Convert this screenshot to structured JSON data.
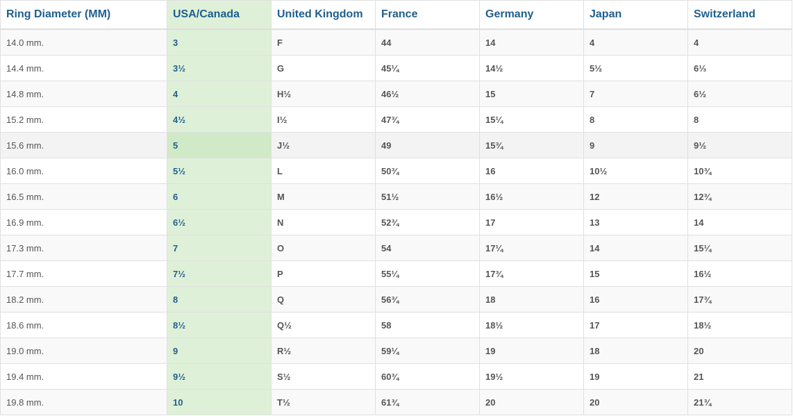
{
  "table": {
    "headers": [
      "Ring Diameter (MM)",
      "USA/Canada",
      "United Kingdom",
      "France",
      "Germany",
      "Japan",
      "Switzerland"
    ],
    "highlight_color": "#dff0d8",
    "header_color": "#1f5f8e",
    "hovered_row": 4,
    "rows": [
      [
        "14.0 mm.",
        "3",
        "F",
        "44",
        "14",
        "4",
        "4"
      ],
      [
        "14.4 mm.",
        "3½",
        "G",
        "45¼",
        "14½",
        "5½",
        "6⅓"
      ],
      [
        "14.8 mm.",
        "4",
        "H½",
        "46½",
        "15",
        "7",
        "6½"
      ],
      [
        "15.2 mm.",
        "4½",
        "I½",
        "47¾",
        "15¼",
        "8",
        "8"
      ],
      [
        "15.6 mm.",
        "5",
        "J½",
        "49",
        "15¾",
        "9",
        "9½"
      ],
      [
        "16.0 mm.",
        "5½",
        "L",
        "50¾",
        "16",
        "10½",
        "10¾"
      ],
      [
        "16.5 mm.",
        "6",
        "M",
        "51½",
        "16½",
        "12",
        "12¾"
      ],
      [
        "16.9 mm.",
        "6½",
        "N",
        "52¾",
        "17",
        "13",
        "14"
      ],
      [
        "17.3 mm.",
        "7",
        "O",
        "54",
        "17¼",
        "14",
        "15¼"
      ],
      [
        "17.7 mm.",
        "7½",
        "P",
        "55¼",
        "17¾",
        "15",
        "16½"
      ],
      [
        "18.2 mm.",
        "8",
        "Q",
        "56¾",
        "18",
        "16",
        "17¾"
      ],
      [
        "18.6 mm.",
        "8½",
        "Q½",
        "58",
        "18½",
        "17",
        "18½"
      ],
      [
        "19.0 mm.",
        "9",
        "R½",
        "59¼",
        "19",
        "18",
        "20"
      ],
      [
        "19.4 mm.",
        "9½",
        "S½",
        "60¾",
        "19½",
        "19",
        "21"
      ],
      [
        "19.8 mm.",
        "10",
        "T½",
        "61¾",
        "20",
        "20",
        "21¾"
      ]
    ]
  }
}
